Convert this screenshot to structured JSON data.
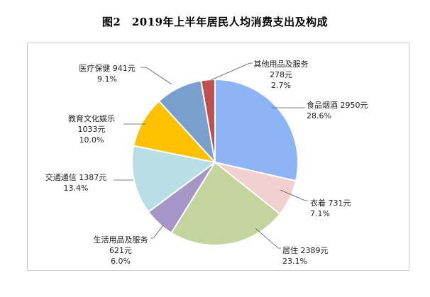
{
  "title": "图2　2019年上半年居民人均消费支出及构成",
  "chart_data": {
    "type": "pie",
    "title": "图2　2019年上半年居民人均消费支出及构成",
    "start_angle_deg": 90,
    "direction": "clockwise",
    "slices": [
      {
        "category": "食品烟酒",
        "amount": "2950元",
        "percent": "28.6%",
        "value": 28.6,
        "color": "#8db4f5"
      },
      {
        "category": "衣着",
        "amount": "731元",
        "percent": "7.1%",
        "value": 7.1,
        "color": "#f2d0d0"
      },
      {
        "category": "居住",
        "amount": "2389元",
        "percent": "23.1%",
        "value": 23.1,
        "color": "#c3d49c"
      },
      {
        "category": "生活用品及服务",
        "amount": "621元",
        "percent": "6.0%",
        "value": 6.0,
        "color": "#a596c7"
      },
      {
        "category": "交通通信",
        "amount": "1387元",
        "percent": "13.4%",
        "value": 13.4,
        "color": "#b8dfe6"
      },
      {
        "category": "教育文化娱乐",
        "amount": "1033元",
        "percent": "10.0%",
        "value": 10.0,
        "color": "#ffc000"
      },
      {
        "category": "医疗保健",
        "amount": "941元",
        "percent": "9.1%",
        "value": 9.1,
        "color": "#7a9fcf"
      },
      {
        "category": "其他用品及服务",
        "amount": "278元",
        "percent": "2.7%",
        "value": 2.7,
        "color": "#c0504d"
      }
    ]
  }
}
